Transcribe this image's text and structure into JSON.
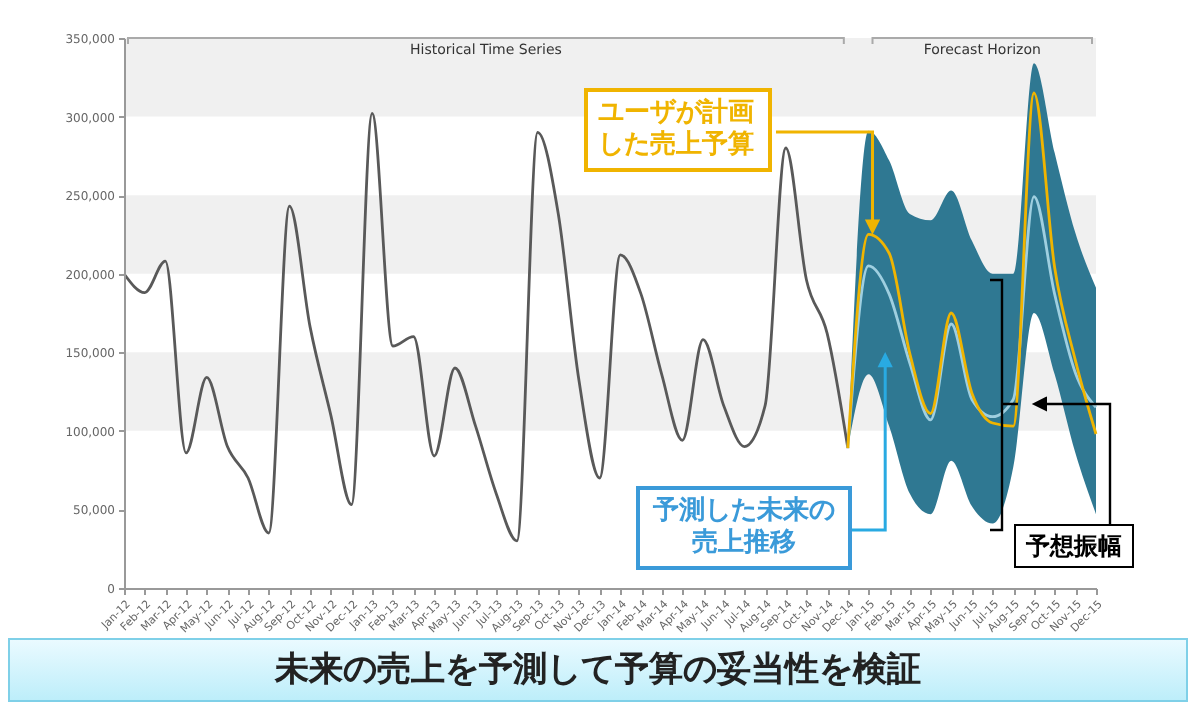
{
  "chart_data": {
    "type": "line",
    "categories": [
      "Jan-12",
      "Feb-12",
      "Mar-12",
      "Apr-12",
      "May-12",
      "Jun-12",
      "Jul-12",
      "Aug-12",
      "Sep-12",
      "Oct-12",
      "Nov-12",
      "Dec-12",
      "Jan-13",
      "Feb-13",
      "Mar-13",
      "Apr-13",
      "May-13",
      "Jun-13",
      "Jul-13",
      "Aug-13",
      "Sep-13",
      "Oct-13",
      "Nov-13",
      "Dec-13",
      "Jan-14",
      "Feb-14",
      "Mar-14",
      "Apr-14",
      "May-14",
      "Jun-14",
      "Jul-14",
      "Aug-14",
      "Sep-14",
      "Oct-14",
      "Nov-14",
      "Dec-14",
      "Jan-15",
      "Feb-15",
      "Mar-15",
      "Apr-15",
      "May-15",
      "Jun-15",
      "Jul-15",
      "Aug-15",
      "Sep-15",
      "Oct-15",
      "Nov-15",
      "Dec-15"
    ],
    "series": [
      {
        "color": "#595959",
        "values": [
          200000,
          188000,
          208000,
          86000,
          134000,
          90000,
          70000,
          35000,
          243000,
          166000,
          110000,
          53000,
          302000,
          154000,
          160000,
          84000,
          140000,
          103000,
          60000,
          30000,
          290000,
          238000,
          132000,
          70000,
          212000,
          187000,
          136000,
          94000,
          158000,
          116000,
          90000,
          116000,
          280000,
          196000,
          162000,
          89000,
          null,
          null,
          null,
          null,
          null,
          null,
          null,
          null,
          null,
          null,
          null,
          null
        ]
      },
      {
        "color": "#9fcfe0",
        "values": [
          null,
          null,
          null,
          null,
          null,
          null,
          null,
          null,
          null,
          null,
          null,
          null,
          null,
          null,
          null,
          null,
          null,
          null,
          null,
          null,
          null,
          null,
          null,
          null,
          null,
          null,
          null,
          null,
          null,
          null,
          null,
          null,
          null,
          null,
          null,
          89000,
          205000,
          187000,
          143000,
          107000,
          168000,
          120000,
          109000,
          120000,
          249000,
          187000,
          137000,
          115000
        ],
        "lower": [
          null,
          null,
          null,
          null,
          null,
          null,
          null,
          null,
          null,
          null,
          null,
          null,
          null,
          null,
          null,
          null,
          null,
          null,
          null,
          null,
          null,
          null,
          null,
          null,
          null,
          null,
          null,
          null,
          null,
          null,
          null,
          null,
          null,
          null,
          null,
          89000,
          136000,
          103000,
          60000,
          47000,
          81000,
          52000,
          41000,
          77000,
          175000,
          136000,
          86000,
          47000
        ],
        "upper": [
          null,
          null,
          null,
          null,
          null,
          null,
          null,
          null,
          null,
          null,
          null,
          null,
          null,
          null,
          null,
          null,
          null,
          null,
          null,
          null,
          null,
          null,
          null,
          null,
          null,
          null,
          null,
          null,
          null,
          null,
          null,
          null,
          null,
          null,
          null,
          89000,
          291000,
          272000,
          238000,
          234000,
          253000,
          221000,
          200000,
          200000,
          334000,
          277000,
          226000,
          191000
        ]
      },
      {
        "color": "#f0b400",
        "values": [
          null,
          null,
          null,
          null,
          null,
          null,
          null,
          null,
          null,
          null,
          null,
          null,
          null,
          null,
          null,
          null,
          null,
          null,
          null,
          null,
          null,
          null,
          null,
          null,
          null,
          null,
          null,
          null,
          null,
          null,
          null,
          null,
          null,
          null,
          null,
          89000,
          225000,
          213000,
          149000,
          111000,
          175000,
          124000,
          105000,
          103000,
          315000,
          204000,
          145000,
          98000
        ]
      }
    ],
    "ylim": [
      0,
      350000
    ],
    "yticks": [
      0,
      {
        "value": 50000,
        "label": "50,000"
      },
      {
        "value": 100000,
        "label": "100,000"
      },
      {
        "value": 150000,
        "label": "150,000"
      },
      {
        "value": 200000,
        "label": "200,000"
      },
      {
        "value": 250000,
        "label": "250,000"
      },
      {
        "value": 300000,
        "label": "300,000"
      },
      {
        "value": 350000,
        "label": "350,000"
      }
    ],
    "bands": [
      {
        "axis": "y",
        "from": 100000,
        "to": 150000,
        "color": "#f0f0f0"
      },
      {
        "axis": "y",
        "from": 200000,
        "to": 250000,
        "color": "#f0f0f0"
      },
      {
        "axis": "y",
        "from": 300000,
        "to": 350000,
        "color": "#f0f0f0"
      }
    ],
    "annotations": [
      "Historical Time Series",
      "Forecast Horizon",
      "ユーザが計画した売上予算",
      "予測した未来の売上推移",
      "予想振幅",
      "未来の売上を予測して予算の妥当性を検証"
    ]
  }
}
